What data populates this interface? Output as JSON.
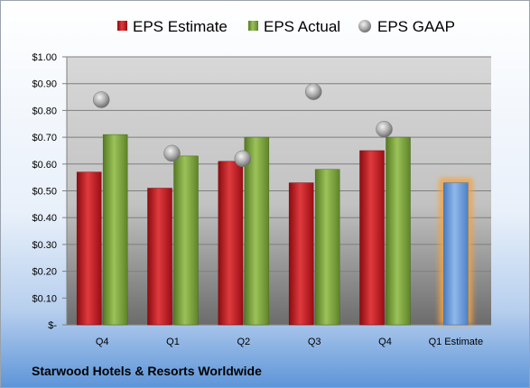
{
  "company_name": "Starwood Hotels & Resorts Worldwide",
  "colors": {
    "estimate": "#c0141c",
    "actual": "#7aa13a",
    "gaap": "#a8a8a8",
    "q1_estimate": "#6f9fd8",
    "q1_estimate_glow": "#f4a340"
  },
  "chart_data": {
    "type": "bar",
    "categories": [
      "Q4",
      "Q1",
      "Q2",
      "Q3",
      "Q4",
      "Q1 Estimate"
    ],
    "series": [
      {
        "name": "EPS Estimate",
        "type": "bar",
        "values": [
          0.57,
          0.51,
          0.61,
          0.53,
          0.65,
          null
        ]
      },
      {
        "name": "EPS Actual",
        "type": "bar",
        "values": [
          0.71,
          0.63,
          0.7,
          0.58,
          0.7,
          null
        ]
      },
      {
        "name": "EPS GAAP",
        "type": "scatter",
        "values": [
          0.84,
          0.64,
          0.62,
          0.87,
          0.73,
          null
        ]
      },
      {
        "name": "",
        "type": "bar",
        "values": [
          null,
          null,
          null,
          null,
          null,
          0.53
        ]
      }
    ],
    "yticks": [
      "$-",
      "$0.10",
      "$0.20",
      "$0.30",
      "$0.40",
      "$0.50",
      "$0.60",
      "$0.70",
      "$0.80",
      "$0.90",
      "$1.00"
    ],
    "ylim": [
      0,
      1.0
    ],
    "grid": true,
    "legend_position": "top"
  }
}
